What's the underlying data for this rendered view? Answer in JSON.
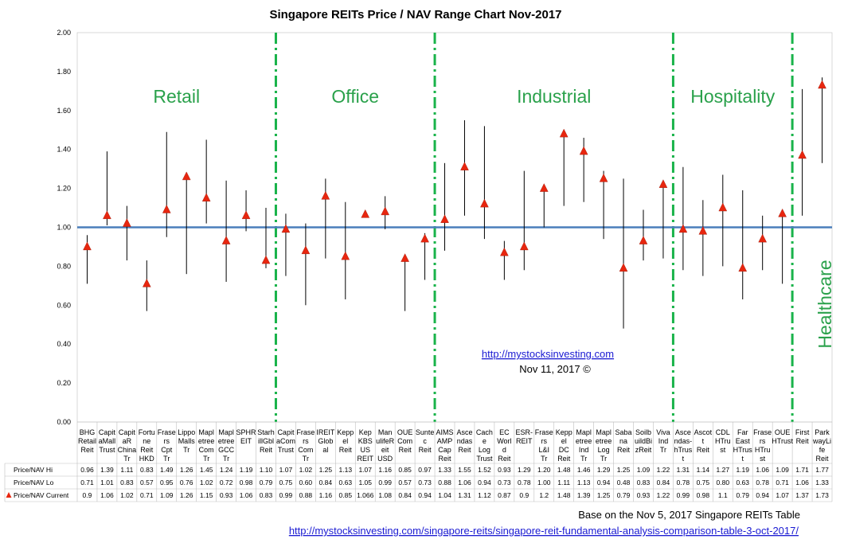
{
  "chart_data": {
    "type": "range",
    "title": "Singapore REITs Price / NAV Range Chart Nov-2017",
    "ylim": [
      0,
      2.0
    ],
    "y_ticks": [
      "0.00",
      "0.20",
      "0.40",
      "0.60",
      "0.80",
      "1.00",
      "1.20",
      "1.40",
      "1.60",
      "1.80",
      "2.00"
    ],
    "reference_line": 1.0,
    "grid": false,
    "categories": [
      "BHG Retail Reit",
      "Capit aMall Trust",
      "Capit aR China Tr",
      "Fortu ne Reit HKD",
      "Frase rs Cpt Tr",
      "Lippo Malls Tr",
      "Mapl etree Com Tr",
      "Mapl etree GCC Tr",
      "SPHR EIT",
      "Starh illGbl Reit",
      "Capit aCom Trust",
      "Frase rs Com Tr",
      "IREIT Glob al",
      "Kepp el Reit",
      "Kep KBS US REIT",
      "Man ulifeR eit USD",
      "OUE Com Reit",
      "Sunte c Reit",
      "AIMS AMP Cap Reit",
      "Asce ndas Reit",
      "Cach e Log Trust",
      "EC Worl d Reit",
      "ESR- REIT",
      "Frase rs L&I Tr",
      "Kepp el DC Reit",
      "Mapl etree Ind Tr",
      "Mapl etree Log Tr",
      "Saba na Reit",
      "Soilb uildBi zReit",
      "Viva Ind Tr",
      "Asce ndas- hTrus t",
      "Ascot t Reit",
      "CDL HTru st",
      "Far East HTrus t",
      "Frase rs HTru st",
      "OUE HTrust",
      "First Reit",
      "Park wayLi fe Reit"
    ],
    "series": [
      {
        "name": "Price/NAV Hi",
        "labels": [
          "0.96",
          "1.39",
          "1.11",
          "0.83",
          "1.49",
          "1.26",
          "1.45",
          "1.24",
          "1.19",
          "1.10",
          "1.07",
          "1.02",
          "1.25",
          "1.13",
          "1.07",
          "1.16",
          "0.85",
          "0.97",
          "1.33",
          "1.55",
          "1.52",
          "0.93",
          "1.29",
          "1.20",
          "1.48",
          "1.46",
          "1.29",
          "1.25",
          "1.09",
          "1.22",
          "1.31",
          "1.14",
          "1.27",
          "1.19",
          "1.06",
          "1.09",
          "1.71",
          "1.77"
        ],
        "values": [
          0.96,
          1.39,
          1.11,
          0.83,
          1.49,
          1.26,
          1.45,
          1.24,
          1.19,
          1.1,
          1.07,
          1.02,
          1.25,
          1.13,
          1.07,
          1.16,
          0.85,
          0.97,
          1.33,
          1.55,
          1.52,
          0.93,
          1.29,
          1.2,
          1.48,
          1.46,
          1.29,
          1.25,
          1.09,
          1.22,
          1.31,
          1.14,
          1.27,
          1.19,
          1.06,
          1.09,
          1.71,
          1.77
        ]
      },
      {
        "name": "Price/NAV Lo",
        "labels": [
          "0.71",
          "1.01",
          "0.83",
          "0.57",
          "0.95",
          "0.76",
          "1.02",
          "0.72",
          "0.98",
          "0.79",
          "0.75",
          "0.60",
          "0.84",
          "0.63",
          "1.05",
          "0.99",
          "0.57",
          "0.73",
          "0.88",
          "1.06",
          "0.94",
          "0.73",
          "0.78",
          "1.00",
          "1.11",
          "1.13",
          "0.94",
          "0.48",
          "0.83",
          "0.84",
          "0.78",
          "0.75",
          "0.80",
          "0.63",
          "0.78",
          "0.71",
          "1.06",
          "1.33"
        ],
        "values": [
          0.71,
          1.01,
          0.83,
          0.57,
          0.95,
          0.76,
          1.02,
          0.72,
          0.98,
          0.79,
          0.75,
          0.6,
          0.84,
          0.63,
          1.05,
          0.99,
          0.57,
          0.73,
          0.88,
          1.06,
          0.94,
          0.73,
          0.78,
          1.0,
          1.11,
          1.13,
          0.94,
          0.48,
          0.83,
          0.84,
          0.78,
          0.75,
          0.8,
          0.63,
          0.78,
          0.71,
          1.06,
          1.33
        ]
      },
      {
        "name": "Price/NAV Current",
        "labels": [
          "0.9",
          "1.06",
          "1.02",
          "0.71",
          "1.09",
          "1.26",
          "1.15",
          "0.93",
          "1.06",
          "0.83",
          "0.99",
          "0.88",
          "1.16",
          "0.85",
          "1.066",
          "1.08",
          "0.84",
          "0.94",
          "1.04",
          "1.31",
          "1.12",
          "0.87",
          "0.9",
          "1.2",
          "1.48",
          "1.39",
          "1.25",
          "0.79",
          "0.93",
          "1.22",
          "0.99",
          "0.98",
          "1.1",
          "0.79",
          "0.94",
          "1.07",
          "1.37",
          "1.73"
        ],
        "values": [
          0.9,
          1.06,
          1.02,
          0.71,
          1.09,
          1.26,
          1.15,
          0.93,
          1.06,
          0.83,
          0.99,
          0.88,
          1.16,
          0.85,
          1.066,
          1.08,
          0.84,
          0.94,
          1.04,
          1.31,
          1.12,
          0.87,
          0.9,
          1.2,
          1.48,
          1.39,
          1.25,
          0.79,
          0.93,
          1.22,
          0.99,
          0.98,
          1.1,
          0.79,
          0.94,
          1.07,
          1.37,
          1.73
        ]
      }
    ],
    "sectors": [
      "Retail",
      "Office",
      "Industrial",
      "Hospitality",
      "Healthcare"
    ],
    "sector_boundaries_after_index": [
      9,
      17,
      29,
      35
    ],
    "annotation_link": "http://mystocksinvesting.com",
    "annotation_date": "Nov 11, 2017 ©",
    "footer_text": "Base on the Nov 5, 2017 Singapore REITs Table",
    "footer_link": "http://mystocksinvesting.com/singapore-reits/singapore-reit-fundamental-analysis-comparison-table-3-oct-2017/",
    "colors": {
      "range_line": "#000000",
      "marker": "#e8260f",
      "reference_line": "#4a7ebb",
      "sector_divider": "#19b34a",
      "sector_text": "#2aa14b",
      "link": "#1a1ad2"
    }
  }
}
